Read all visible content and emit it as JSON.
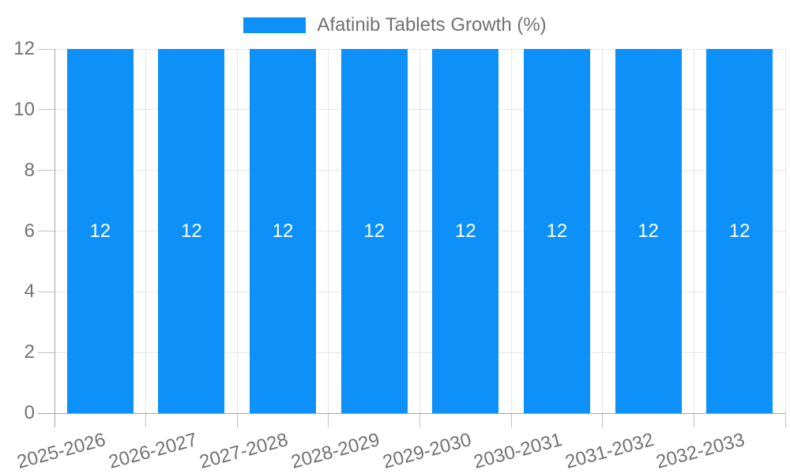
{
  "chart_data": {
    "type": "bar",
    "title": "Afatinib Tablets Growth (%)",
    "legend": {
      "label": "Afatinib Tablets Growth (%)",
      "position": "top"
    },
    "categories": [
      "2025-2026",
      "2026-2027",
      "2027-2028",
      "2028-2029",
      "2029-2030",
      "2030-2031",
      "2031-2032",
      "2032-2033"
    ],
    "series": [
      {
        "name": "Afatinib Tablets Growth (%)",
        "values": [
          12,
          12,
          12,
          12,
          12,
          12,
          12,
          12
        ],
        "bar_labels": [
          "12",
          "12",
          "12",
          "12",
          "12",
          "12",
          "12",
          "12"
        ]
      }
    ],
    "xlabel": "",
    "ylabel": "",
    "ylim": [
      0,
      12
    ],
    "y_ticks": [
      "0",
      "2",
      "4",
      "6",
      "8",
      "10",
      "12"
    ],
    "grid": true,
    "colors": {
      "bar": "#0d90f8",
      "bar_value_text": "#ffffff",
      "axis_text": "#717171",
      "gridline": "#e6e6e6",
      "tick_line": "#c2c2c2",
      "axis_line": "#a6a6a6",
      "background": "#ffffff"
    }
  }
}
